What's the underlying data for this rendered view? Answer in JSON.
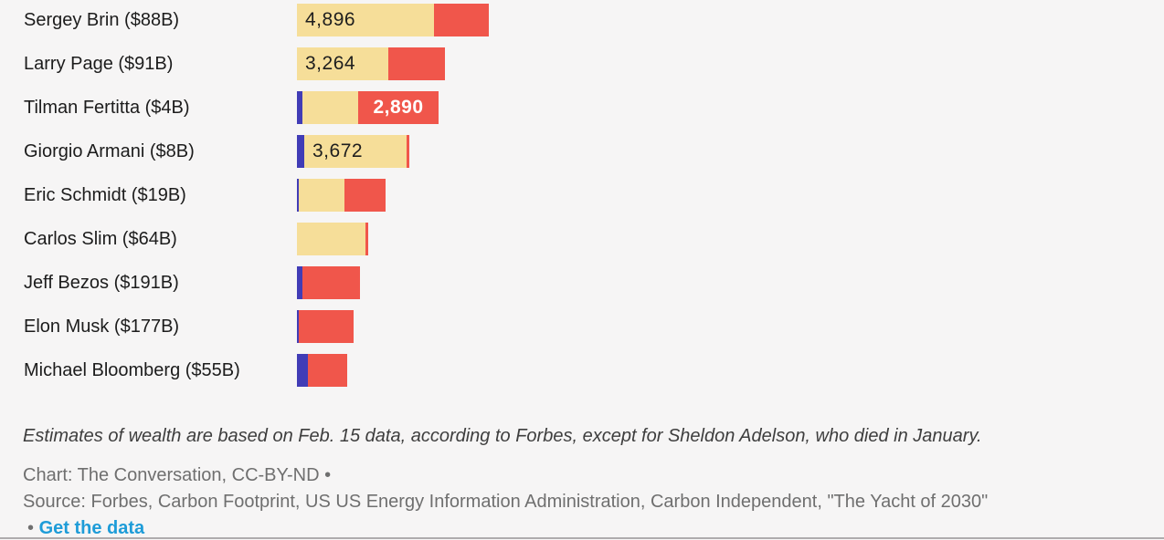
{
  "chart_data": {
    "type": "bar",
    "orientation": "horizontal",
    "stacked": true,
    "grid": false,
    "legend": "none-visible",
    "colors": {
      "blue": "#413cb6",
      "yellow": "#f6de99",
      "red": "#f0564b"
    },
    "rows": [
      {
        "name": "Sergey Brin ($88B)",
        "segments": [
          {
            "color": "yellow",
            "value": 4896,
            "label": "4,896",
            "label_style": "dark-left"
          },
          {
            "color": "red",
            "value": 1975
          }
        ]
      },
      {
        "name": "Larry Page ($91B)",
        "segments": [
          {
            "color": "yellow",
            "value": 3264,
            "label": "3,264",
            "label_style": "dark-left"
          },
          {
            "color": "red",
            "value": 2030
          }
        ]
      },
      {
        "name": "Tilman Fertitta ($4B)",
        "segments": [
          {
            "color": "blue",
            "value": 200
          },
          {
            "color": "yellow",
            "value": 2000
          },
          {
            "color": "red",
            "value": 2890,
            "label": "2,890",
            "label_style": "white-center"
          }
        ]
      },
      {
        "name": "Giorgio Armani ($8B)",
        "segments": [
          {
            "color": "blue",
            "value": 260
          },
          {
            "color": "yellow",
            "value": 3672,
            "label": "3,672",
            "label_style": "dark-left"
          },
          {
            "color": "red",
            "value": 100
          }
        ]
      },
      {
        "name": "Eric Schmidt ($19B)",
        "segments": [
          {
            "color": "blue",
            "value": 65
          },
          {
            "color": "yellow",
            "value": 1640
          },
          {
            "color": "red",
            "value": 1475
          }
        ]
      },
      {
        "name": "Carlos Slim ($64B)",
        "segments": [
          {
            "color": "yellow",
            "value": 2460
          },
          {
            "color": "red",
            "value": 100
          }
        ]
      },
      {
        "name": "Jeff Bezos ($191B)",
        "segments": [
          {
            "color": "blue",
            "value": 200
          },
          {
            "color": "red",
            "value": 2065
          }
        ]
      },
      {
        "name": "Elon Musk ($177B)",
        "segments": [
          {
            "color": "blue",
            "value": 65
          },
          {
            "color": "red",
            "value": 1975
          }
        ]
      },
      {
        "name": "Michael Bloomberg ($55B)",
        "segments": [
          {
            "color": "blue",
            "value": 395
          },
          {
            "color": "red",
            "value": 1410
          }
        ]
      }
    ]
  },
  "footer": {
    "note": "Estimates of wealth are based on Feb. 15 data, according to Forbes, except for Sheldon Adelson, who died in January.",
    "credit": "Chart: The Conversation, CC-BY-ND •",
    "source": "Source: Forbes, Carbon Footprint, US US Energy Information Administration, Carbon Independent, \"The Yacht of 2030\"",
    "get_data_bullet": "•",
    "get_data_label": "Get the data"
  }
}
